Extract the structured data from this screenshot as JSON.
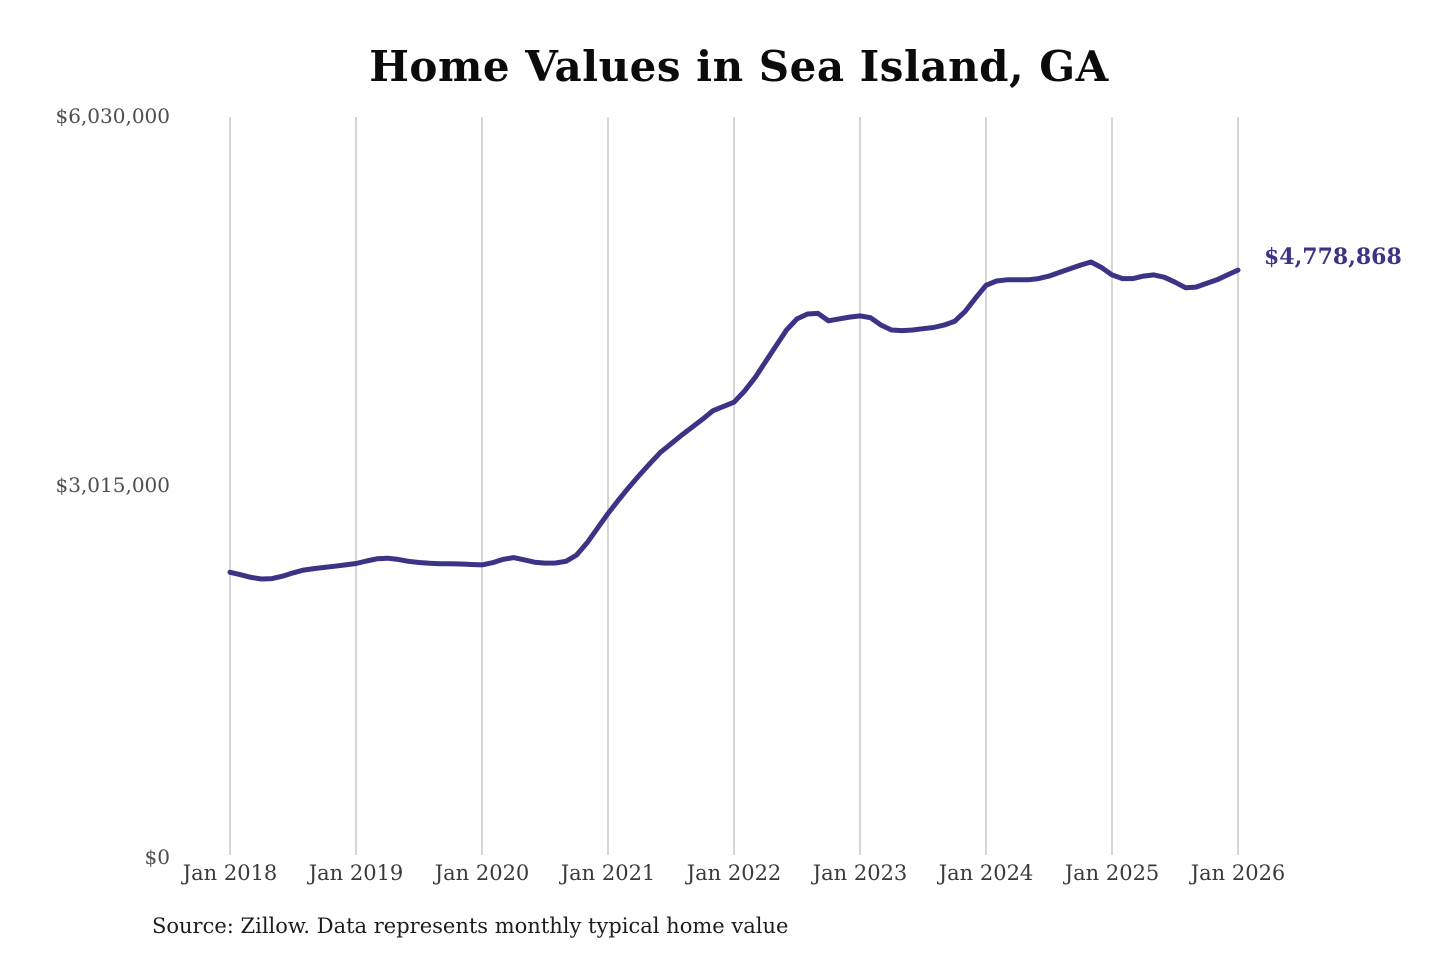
{
  "title": "Home Values in Sea Island, GA",
  "annotation": {
    "final_value_label": "$4,778,868"
  },
  "source_note": "Source: Zillow. Data represents monthly typical home value",
  "y_axis": {
    "ticks": [
      "$6,030,000",
      "$3,015,000",
      "$0"
    ]
  },
  "x_axis": {
    "ticks": [
      "Jan 2018",
      "Jan 2019",
      "Jan 2020",
      "Jan 2021",
      "Jan 2022",
      "Jan 2023",
      "Jan 2024",
      "Jan 2025",
      "Jan 2026"
    ]
  },
  "colors": {
    "line": "#3a3386",
    "grid": "#c9c9c9",
    "title_text": "#0b0b0b",
    "y_tick_text": "#4d4d4d",
    "x_tick_text": "#3a3a3a",
    "annotation_text": "#3a3386",
    "source_text": "#1d1d1d",
    "background": "#ffffff"
  },
  "chart_data": {
    "type": "line",
    "title": "Home Values in Sea Island, GA",
    "x_start": "2018-01",
    "x_end": "2026-01",
    "x_interval": "monthly",
    "values": [
      2310000,
      2290000,
      2268000,
      2255000,
      2258000,
      2278000,
      2305000,
      2328000,
      2340000,
      2350000,
      2360000,
      2370000,
      2382000,
      2402000,
      2420000,
      2425000,
      2415000,
      2400000,
      2390000,
      2383000,
      2380000,
      2380000,
      2378000,
      2374000,
      2370000,
      2388000,
      2415000,
      2430000,
      2412000,
      2392000,
      2385000,
      2386000,
      2400000,
      2450000,
      2550000,
      2670000,
      2790000,
      2900000,
      3005000,
      3105000,
      3200000,
      3290000,
      3360000,
      3430000,
      3495000,
      3560000,
      3630000,
      3665000,
      3700000,
      3790000,
      3900000,
      4030000,
      4160000,
      4290000,
      4380000,
      4420000,
      4425000,
      4365000,
      4380000,
      4395000,
      4405000,
      4390000,
      4330000,
      4290000,
      4285000,
      4290000,
      4300000,
      4310000,
      4330000,
      4360000,
      4440000,
      4550000,
      4655000,
      4690000,
      4700000,
      4700000,
      4700000,
      4710000,
      4730000,
      4760000,
      4790000,
      4820000,
      4845000,
      4800000,
      4740000,
      4710000,
      4710000,
      4730000,
      4740000,
      4720000,
      4680000,
      4635000,
      4640000,
      4670000,
      4700000,
      4740000,
      4778868
    ],
    "final_value": 4778868,
    "ylim": [
      0,
      6030000
    ],
    "yticks": [
      0,
      3015000,
      6030000
    ],
    "xtick_labels": [
      "Jan 2018",
      "Jan 2019",
      "Jan 2020",
      "Jan 2021",
      "Jan 2022",
      "Jan 2023",
      "Jan 2024",
      "Jan 2025",
      "Jan 2026"
    ],
    "grid": "vertical-only",
    "legend": "none",
    "line_color": "#3a3386",
    "source": "Source: Zillow. Data represents monthly typical home value"
  }
}
